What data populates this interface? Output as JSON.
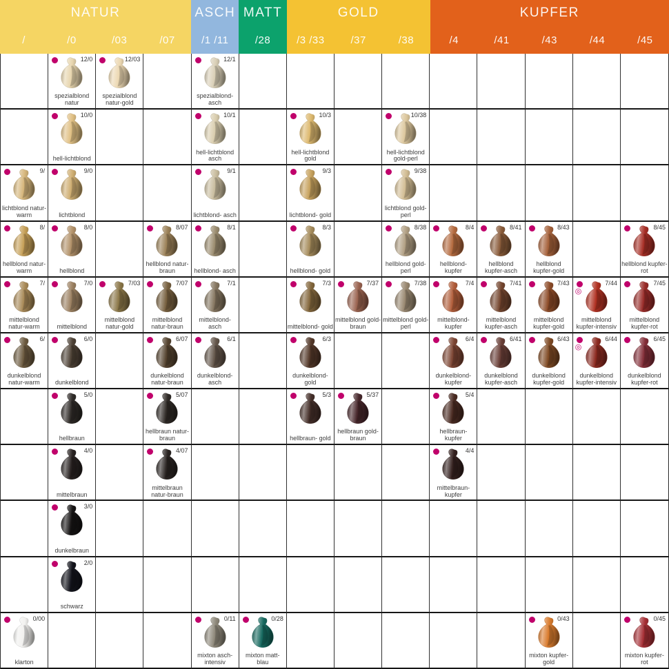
{
  "markers": {
    "dot_color": "#c0006b",
    "extra_symbol": "◎"
  },
  "header": {
    "categories": [
      {
        "name": "NATUR",
        "span": 4,
        "color": "#f5d563"
      },
      {
        "name": "ASCH",
        "span": 1,
        "color": "#92b7de"
      },
      {
        "name": "MATT",
        "span": 1,
        "color": "#0ca26c"
      },
      {
        "name": "GOLD",
        "span": 3,
        "color": "#f4c233"
      },
      {
        "name": "KUPFER",
        "span": 5,
        "color": "#e2611b"
      }
    ],
    "columns": [
      {
        "code": "/",
        "cat": 0
      },
      {
        "code": "/0",
        "cat": 0
      },
      {
        "code": "/03",
        "cat": 0
      },
      {
        "code": "/07",
        "cat": 0
      },
      {
        "code": "/1 /11",
        "cat": 1
      },
      {
        "code": "/28",
        "cat": 2
      },
      {
        "code": "/3 /33",
        "cat": 3
      },
      {
        "code": "/37",
        "cat": 3
      },
      {
        "code": "/38",
        "cat": 3
      },
      {
        "code": "/4",
        "cat": 4
      },
      {
        "code": "/41",
        "cat": 4
      },
      {
        "code": "/43",
        "cat": 4
      },
      {
        "code": "/44",
        "cat": 4
      },
      {
        "code": "/45",
        "cat": 4
      }
    ]
  },
  "rows": [
    {
      "level": "12",
      "cells": [
        null,
        {
          "code": "12/0",
          "label": "spezialblond natur",
          "color": "#e7d5ae"
        },
        {
          "code": "12/03",
          "label": "spezialblond natur-gold",
          "color": "#ecd8b2"
        },
        null,
        {
          "code": "12/1",
          "label": "spezialblond- asch",
          "color": "#d9cfb6"
        },
        null,
        null,
        null,
        null,
        null,
        null,
        null,
        null,
        null
      ]
    },
    {
      "level": "10",
      "cells": [
        null,
        {
          "code": "10/0",
          "label": "hell-lichtblond",
          "color": "#e0c084"
        },
        null,
        null,
        {
          "code": "10/1",
          "label": "hell-lichtblond asch",
          "color": "#d9cdae"
        },
        null,
        {
          "code": "10/3",
          "label": "hell-lichtblond gold",
          "color": "#ddb96f"
        },
        null,
        {
          "code": "10/38",
          "label": "hell-lichtblond gold-perl",
          "color": "#dcc79d"
        },
        null,
        null,
        null,
        null,
        null
      ]
    },
    {
      "level": "9",
      "cells": [
        {
          "code": "9/",
          "label": "lichtblond natur-warm",
          "color": "#d6b67b"
        },
        {
          "code": "9/0",
          "label": "lichtblond",
          "color": "#cfae72"
        },
        null,
        null,
        {
          "code": "9/1",
          "label": "lichtblond- asch",
          "color": "#c9bd9f"
        },
        null,
        {
          "code": "9/3",
          "label": "lichtblond- gold",
          "color": "#c7a25e"
        },
        null,
        {
          "code": "9/38",
          "label": "lichtblond gold-perl",
          "color": "#d2bd94"
        },
        null,
        null,
        null,
        null,
        null
      ]
    },
    {
      "level": "8",
      "cells": [
        {
          "code": "8/",
          "label": "hellblond natur-warm",
          "color": "#c6a058"
        },
        {
          "code": "8/0",
          "label": "hellblond",
          "color": "#b3926a"
        },
        null,
        {
          "code": "8/07",
          "label": "hellblond natur-braun",
          "color": "#9c8259"
        },
        {
          "code": "8/1",
          "label": "hellblond- asch",
          "color": "#9b8c6f"
        },
        null,
        {
          "code": "8/3",
          "label": "hellblond- gold",
          "color": "#a68c5c"
        },
        null,
        {
          "code": "8/38",
          "label": "hellblond gold-perl",
          "color": "#b2a084"
        },
        {
          "code": "8/4",
          "label": "hellblond- kupfer",
          "color": "#b56b3f"
        },
        {
          "code": "8/41",
          "label": "hellblond kupfer-asch",
          "color": "#8a5c3a"
        },
        {
          "code": "8/43",
          "label": "hellblond kupfer-gold",
          "color": "#a5613a"
        },
        null,
        {
          "code": "8/45",
          "label": "hellblond kupfer-rot",
          "color": "#a72f26"
        }
      ]
    },
    {
      "level": "7",
      "cells": [
        {
          "code": "7/",
          "label": "mittelblond natur-warm",
          "color": "#a98a58"
        },
        {
          "code": "7/0",
          "label": "mittelblond",
          "color": "#9c8162"
        },
        {
          "code": "7/03",
          "label": "mittelblond natur-gold",
          "color": "#8b7748"
        },
        {
          "code": "7/07",
          "label": "mittelblond natur-braun",
          "color": "#77603f"
        },
        {
          "code": "7/1",
          "label": "mittelblond- asch",
          "color": "#857660"
        },
        null,
        {
          "code": "7/3",
          "label": "mittelblond- gold",
          "color": "#84683d"
        },
        {
          "code": "7/37",
          "label": "mittelblond gold-braun",
          "color": "#9a6350"
        },
        {
          "code": "7/38",
          "label": "mittelblond gold-perl",
          "color": "#998871"
        },
        {
          "code": "7/4",
          "label": "mittelblond- kupfer",
          "color": "#b25e3b"
        },
        {
          "code": "7/41",
          "label": "mittelblond kupfer-asch",
          "color": "#75462f"
        },
        {
          "code": "7/43",
          "label": "mittelblond kupfer-gold",
          "color": "#8d4c29"
        },
        {
          "code": "7/44",
          "label": "mittelblond kupfer-intensiv",
          "color": "#b03122",
          "extra": true
        },
        {
          "code": "7/45",
          "label": "mittelblond kupfer-rot",
          "color": "#992c29"
        }
      ]
    },
    {
      "level": "6",
      "cells": [
        {
          "code": "6/",
          "label": "dunkelblond natur-warm",
          "color": "#6d5b40"
        },
        {
          "code": "6/0",
          "label": "dunkelblond",
          "color": "#4e4236"
        },
        null,
        {
          "code": "6/07",
          "label": "dunkelblond natur-braun",
          "color": "#55432f"
        },
        {
          "code": "6/1",
          "label": "dunkelblond- asch",
          "color": "#64564a"
        },
        null,
        {
          "code": "6/3",
          "label": "dunkelblond- gold",
          "color": "#54392a"
        },
        null,
        null,
        {
          "code": "6/4",
          "label": "dunkelblond- kupfer",
          "color": "#7d4634"
        },
        {
          "code": "6/41",
          "label": "dunkelblond kupfer-asch",
          "color": "#6b4038"
        },
        {
          "code": "6/43",
          "label": "dunkelblond kupfer-gold",
          "color": "#7f4a24"
        },
        {
          "code": "6/44",
          "label": "dunkelblond kupfer-intensiv",
          "color": "#8c2a20",
          "extra": true
        },
        {
          "code": "6/45",
          "label": "dunkelblond kupfer-rot",
          "color": "#85303a"
        }
      ]
    },
    {
      "level": "5",
      "cells": [
        null,
        {
          "code": "5/0",
          "label": "hellbraun",
          "color": "#2e2a27"
        },
        null,
        {
          "code": "5/07",
          "label": "hellbraun natur-braun",
          "color": "#2f2a26"
        },
        null,
        null,
        {
          "code": "5/3",
          "label": "hellbraun- gold",
          "color": "#45302a"
        },
        {
          "code": "5/37",
          "label": "hellbraun gold-braun",
          "color": "#47272b"
        },
        null,
        {
          "code": "5/4",
          "label": "hellbraun- kupfer",
          "color": "#4a2b22"
        },
        null,
        null,
        null,
        null
      ]
    },
    {
      "level": "4",
      "cells": [
        null,
        {
          "code": "4/0",
          "label": "mittelbraun",
          "color": "#282221"
        },
        null,
        {
          "code": "4/07",
          "label": "mittelbraun natur-braun",
          "color": "#2a2422"
        },
        null,
        null,
        null,
        null,
        null,
        {
          "code": "4/4",
          "label": "mittelbraun- kupfer",
          "color": "#34211f"
        },
        null,
        null,
        null,
        null
      ]
    },
    {
      "level": "3",
      "cells": [
        null,
        {
          "code": "3/0",
          "label": "dunkelbraun",
          "color": "#161414"
        },
        null,
        null,
        null,
        null,
        null,
        null,
        null,
        null,
        null,
        null,
        null,
        null
      ]
    },
    {
      "level": "2",
      "cells": [
        null,
        {
          "code": "2/0",
          "label": "schwarz",
          "color": "#13141c"
        },
        null,
        null,
        null,
        null,
        null,
        null,
        null,
        null,
        null,
        null,
        null,
        null
      ]
    },
    {
      "level": "0",
      "cells": [
        {
          "code": "0/00",
          "label": "klarton",
          "color": "#f2f1ef"
        },
        null,
        null,
        null,
        {
          "code": "0/11",
          "label": "mixton asch- intensiv",
          "color": "#8e887a"
        },
        {
          "code": "0/28",
          "label": "mixton matt-blau",
          "color": "#16695f"
        },
        null,
        null,
        null,
        null,
        null,
        {
          "code": "0/43",
          "label": "mixton kupfer-gold",
          "color": "#d97b2d"
        },
        null,
        {
          "code": "0/45",
          "label": "mixton kupfer-rot",
          "color": "#a62f35"
        }
      ]
    }
  ]
}
